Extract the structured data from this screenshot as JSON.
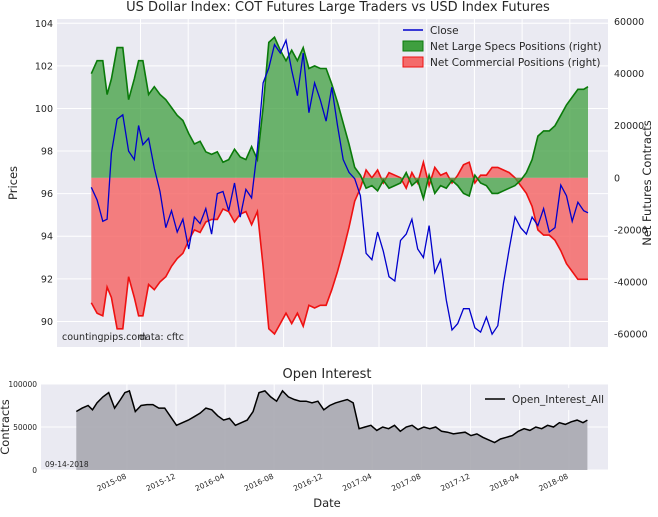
{
  "colors": {
    "close": "#0000cc",
    "specs_fill": "#3f9f3f",
    "specs_line": "#0a7a0a",
    "comm_fill": "#f46a6a",
    "comm_line": "#ee1111",
    "oi_fill": "#a9a9b0",
    "oi_line": "#000000",
    "panel_bg": "#eaeaf2"
  },
  "annotations": {
    "source_site": "countingpips.com",
    "source_data": "data: cftc",
    "date_stamp": "09-14-2018"
  },
  "chart_data": [
    {
      "type": "area",
      "title": "US Dollar Index: COT Futures Large Traders vs USD Index Futures",
      "ylabel": "Prices",
      "ylabel_right": "Net Futures Contracts",
      "ylim": [
        88.8,
        104.2
      ],
      "ylim_right": [
        -65000,
        61000
      ],
      "yticks": [
        "90",
        "92",
        "94",
        "96",
        "98",
        "100",
        "102",
        "104"
      ],
      "yticks_right": [
        "-60000",
        "-40000",
        "-20000",
        "0",
        "20000",
        "40000",
        "60000"
      ],
      "legend": {
        "position": "top-right",
        "entries": [
          "Close",
          "Net Large Specs Positions (right)",
          "Net Commercial Positions (right)"
        ]
      },
      "x_range": [
        2015.0,
        2018.85
      ],
      "series": [
        {
          "name": "Close",
          "axis": "left",
          "x": [
            2015.24,
            2015.28,
            2015.32,
            2015.35,
            2015.38,
            2015.42,
            2015.46,
            2015.5,
            2015.54,
            2015.57,
            2015.6,
            2015.64,
            2015.68,
            2015.72,
            2015.76,
            2015.8,
            2015.84,
            2015.88,
            2015.92,
            2015.96,
            2016.0,
            2016.04,
            2016.08,
            2016.12,
            2016.16,
            2016.2,
            2016.24,
            2016.28,
            2016.32,
            2016.36,
            2016.4,
            2016.44,
            2016.48,
            2016.52,
            2016.56,
            2016.6,
            2016.64,
            2016.68,
            2016.72,
            2016.76,
            2016.8,
            2016.84,
            2016.88,
            2016.92,
            2016.96,
            2017.0,
            2017.04,
            2017.08,
            2017.12,
            2017.16,
            2017.2,
            2017.24,
            2017.28,
            2017.32,
            2017.36,
            2017.4,
            2017.44,
            2017.48,
            2017.52,
            2017.56,
            2017.6,
            2017.64,
            2017.68,
            2017.72,
            2017.76,
            2017.8,
            2017.84,
            2017.88,
            2017.92,
            2017.96,
            2018.0,
            2018.04,
            2018.08,
            2018.12,
            2018.16,
            2018.2,
            2018.24,
            2018.28,
            2018.32,
            2018.36,
            2018.4,
            2018.44,
            2018.48,
            2018.52,
            2018.56,
            2018.6,
            2018.64,
            2018.68,
            2018.71
          ],
          "values": [
            96.3,
            95.7,
            94.7,
            94.8,
            97.9,
            99.5,
            99.7,
            98.0,
            97.6,
            99.2,
            98.3,
            98.6,
            97.2,
            96.1,
            94.4,
            95.2,
            94.2,
            94.8,
            93.4,
            94.9,
            94.6,
            95.3,
            94.1,
            96.0,
            96.1,
            95.2,
            96.5,
            94.9,
            96.2,
            95.8,
            98.1,
            101.2,
            101.9,
            103.0,
            102.6,
            103.2,
            101.8,
            100.6,
            102.6,
            99.8,
            101.2,
            100.4,
            99.4,
            101.0,
            99.2,
            97.6,
            97.0,
            96.7,
            95.9,
            93.2,
            92.9,
            94.2,
            93.3,
            92.1,
            91.9,
            93.8,
            94.1,
            94.8,
            93.4,
            93.0,
            94.5,
            92.3,
            92.9,
            91.0,
            89.6,
            89.9,
            90.6,
            90.6,
            89.7,
            89.5,
            90.2,
            89.4,
            89.8,
            91.8,
            93.4,
            94.9,
            94.4,
            94.1,
            94.9,
            94.5,
            95.3,
            94.2,
            94.4,
            96.4,
            95.9,
            94.7,
            95.6,
            95.2,
            95.1
          ]
        },
        {
          "name": "Net Large Specs Positions (right)",
          "axis": "right",
          "x": [
            2015.24,
            2015.28,
            2015.32,
            2015.35,
            2015.38,
            2015.42,
            2015.46,
            2015.5,
            2015.54,
            2015.57,
            2015.6,
            2015.64,
            2015.68,
            2015.72,
            2015.76,
            2015.8,
            2015.84,
            2015.88,
            2015.92,
            2015.96,
            2016.0,
            2016.04,
            2016.08,
            2016.12,
            2016.16,
            2016.2,
            2016.24,
            2016.28,
            2016.32,
            2016.36,
            2016.4,
            2016.44,
            2016.48,
            2016.52,
            2016.56,
            2016.6,
            2016.64,
            2016.68,
            2016.72,
            2016.76,
            2016.8,
            2016.84,
            2016.88,
            2016.92,
            2016.96,
            2017.0,
            2017.04,
            2017.08,
            2017.12,
            2017.16,
            2017.2,
            2017.24,
            2017.28,
            2017.32,
            2017.36,
            2017.4,
            2017.44,
            2017.48,
            2017.52,
            2017.56,
            2017.6,
            2017.64,
            2017.68,
            2017.72,
            2017.76,
            2017.8,
            2017.84,
            2017.88,
            2017.92,
            2017.96,
            2018.0,
            2018.04,
            2018.08,
            2018.12,
            2018.16,
            2018.2,
            2018.24,
            2018.28,
            2018.32,
            2018.36,
            2018.4,
            2018.44,
            2018.48,
            2018.52,
            2018.56,
            2018.6,
            2018.64,
            2018.68,
            2018.71
          ],
          "values": [
            40000,
            45000,
            45000,
            32000,
            38000,
            50000,
            50000,
            30000,
            38000,
            45000,
            45000,
            32000,
            35000,
            32000,
            30000,
            27000,
            24000,
            22000,
            17000,
            13000,
            14000,
            10000,
            9000,
            10000,
            6000,
            7000,
            11000,
            8000,
            7000,
            12000,
            7000,
            27000,
            52000,
            54000,
            49000,
            45000,
            49000,
            45000,
            50000,
            42000,
            43000,
            42000,
            42000,
            36000,
            29000,
            21000,
            13000,
            4000,
            1000,
            -4000,
            -3000,
            -5000,
            -1000,
            -4000,
            -3000,
            -2000,
            2000,
            -3000,
            -1000,
            -8000,
            1000,
            -6000,
            -3000,
            -4000,
            -1000,
            -3000,
            -6000,
            -7000,
            1000,
            -2000,
            -3000,
            -6000,
            -6000,
            -5000,
            -4000,
            -3000,
            -1000,
            2000,
            7000,
            16000,
            18000,
            18000,
            20000,
            24000,
            28000,
            31000,
            34000,
            34000,
            35000
          ]
        },
        {
          "name": "Net Commercial Positions (right)",
          "axis": "right",
          "x": [
            2015.24,
            2015.28,
            2015.32,
            2015.35,
            2015.38,
            2015.42,
            2015.46,
            2015.5,
            2015.54,
            2015.57,
            2015.6,
            2015.64,
            2015.68,
            2015.72,
            2015.76,
            2015.8,
            2015.84,
            2015.88,
            2015.92,
            2015.96,
            2016.0,
            2016.04,
            2016.08,
            2016.12,
            2016.16,
            2016.2,
            2016.24,
            2016.28,
            2016.32,
            2016.36,
            2016.4,
            2016.44,
            2016.48,
            2016.52,
            2016.56,
            2016.6,
            2016.64,
            2016.68,
            2016.72,
            2016.76,
            2016.8,
            2016.84,
            2016.88,
            2016.92,
            2016.96,
            2017.0,
            2017.04,
            2017.08,
            2017.12,
            2017.16,
            2017.2,
            2017.24,
            2017.28,
            2017.32,
            2017.36,
            2017.4,
            2017.44,
            2017.48,
            2017.52,
            2017.56,
            2017.6,
            2017.64,
            2017.68,
            2017.72,
            2017.76,
            2017.8,
            2017.84,
            2017.88,
            2017.92,
            2017.96,
            2018.0,
            2018.04,
            2018.08,
            2018.12,
            2018.16,
            2018.2,
            2018.24,
            2018.28,
            2018.32,
            2018.36,
            2018.4,
            2018.44,
            2018.48,
            2018.52,
            2018.56,
            2018.6,
            2018.64,
            2018.68,
            2018.71
          ],
          "values": [
            -48000,
            -52000,
            -53000,
            -42000,
            -46000,
            -58000,
            -58000,
            -38000,
            -46000,
            -53000,
            -53000,
            -41000,
            -43000,
            -40000,
            -38000,
            -34000,
            -31000,
            -29000,
            -24000,
            -20000,
            -21000,
            -17000,
            -16000,
            -16000,
            -12000,
            -13000,
            -17000,
            -14000,
            -13000,
            -18000,
            -13000,
            -34000,
            -58000,
            -60000,
            -56000,
            -52000,
            -56000,
            -52000,
            -57000,
            -49000,
            -50000,
            -49000,
            -49000,
            -43000,
            -36000,
            -28000,
            -19000,
            -9000,
            -4000,
            3000,
            0,
            3000,
            -2000,
            2000,
            1000,
            0,
            -4000,
            2000,
            -2000,
            6000,
            -3000,
            4000,
            1000,
            2000,
            -2000,
            1000,
            5000,
            6000,
            -2000,
            1000,
            1000,
            4000,
            4000,
            3000,
            2000,
            0,
            -3000,
            -6000,
            -11000,
            -20000,
            -22000,
            -22000,
            -24000,
            -28000,
            -33000,
            -36000,
            -39000,
            -39000,
            -39000
          ]
        }
      ]
    },
    {
      "type": "area",
      "title": "Open Interest",
      "xlabel": "Date",
      "ylabel": "Contracts",
      "ylim": [
        0,
        100000
      ],
      "yticks": [
        "0",
        "50000",
        "100000"
      ],
      "xticks": [
        "2015-08",
        "2015-12",
        "2016-04",
        "2016-08",
        "2016-12",
        "2017-04",
        "2017-08",
        "2017-12",
        "2018-04",
        "2018-08"
      ],
      "x_range": [
        2015.0,
        2018.85
      ],
      "legend": {
        "position": "top-right",
        "entries": [
          "Open_Interest_All"
        ]
      },
      "series": [
        {
          "name": "Open_Interest_All",
          "x": [
            2015.24,
            2015.28,
            2015.32,
            2015.35,
            2015.38,
            2015.42,
            2015.46,
            2015.5,
            2015.54,
            2015.57,
            2015.6,
            2015.64,
            2015.68,
            2015.72,
            2015.76,
            2015.8,
            2015.84,
            2015.88,
            2015.92,
            2015.96,
            2016.0,
            2016.04,
            2016.08,
            2016.12,
            2016.16,
            2016.2,
            2016.24,
            2016.28,
            2016.32,
            2016.36,
            2016.4,
            2016.44,
            2016.48,
            2016.52,
            2016.56,
            2016.6,
            2016.64,
            2016.68,
            2016.72,
            2016.76,
            2016.8,
            2016.84,
            2016.88,
            2016.92,
            2016.96,
            2017.0,
            2017.04,
            2017.08,
            2017.12,
            2017.16,
            2017.2,
            2017.24,
            2017.28,
            2017.32,
            2017.36,
            2017.4,
            2017.44,
            2017.48,
            2017.52,
            2017.56,
            2017.6,
            2017.64,
            2017.68,
            2017.72,
            2017.76,
            2017.8,
            2017.84,
            2017.88,
            2017.92,
            2017.96,
            2018.0,
            2018.04,
            2018.08,
            2018.12,
            2018.16,
            2018.2,
            2018.24,
            2018.28,
            2018.32,
            2018.36,
            2018.4,
            2018.44,
            2018.48,
            2018.52,
            2018.56,
            2018.6,
            2018.64,
            2018.68,
            2018.71
          ],
          "values": [
            68000,
            72000,
            75000,
            70000,
            78000,
            85000,
            90000,
            72000,
            82000,
            90000,
            92000,
            68000,
            75000,
            76000,
            76000,
            72000,
            72000,
            62000,
            52000,
            55000,
            58000,
            62000,
            66000,
            72000,
            70000,
            63000,
            58000,
            60000,
            52000,
            55000,
            58000,
            68000,
            90000,
            92000,
            85000,
            80000,
            92000,
            85000,
            82000,
            80000,
            80000,
            78000,
            80000,
            70000,
            75000,
            78000,
            80000,
            82000,
            78000,
            48000,
            50000,
            52000,
            46000,
            50000,
            48000,
            52000,
            45000,
            50000,
            52000,
            47000,
            50000,
            48000,
            50000,
            45000,
            44000,
            42000,
            43000,
            44000,
            40000,
            42000,
            38000,
            35000,
            32000,
            36000,
            38000,
            40000,
            45000,
            48000,
            46000,
            50000,
            48000,
            52000,
            50000,
            55000,
            53000,
            56000,
            58000,
            55000,
            58000
          ]
        }
      ]
    }
  ]
}
